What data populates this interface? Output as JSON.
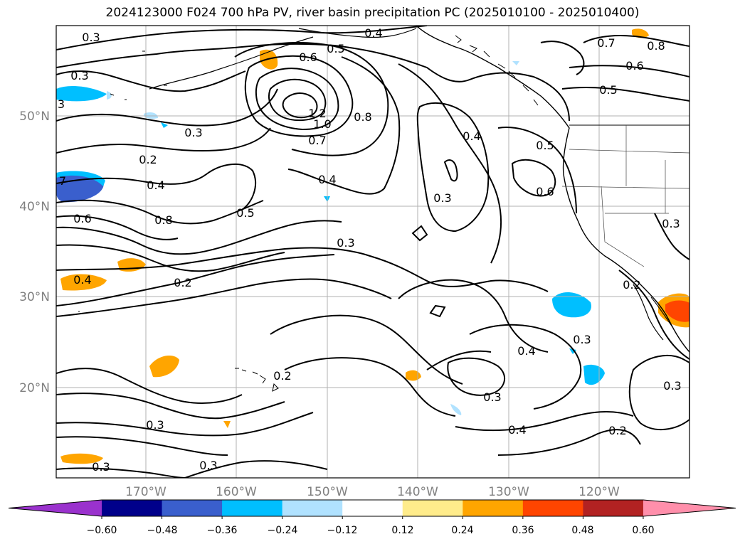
{
  "title": "2024123000 F024 700 hPa PV, river basin precipitation PC (2025010100 - 2025010400)",
  "lat_labels": [
    "50°N",
    "40°N",
    "30°N",
    "20°N"
  ],
  "lon_labels": [
    "170°W",
    "160°W",
    "150°W",
    "140°W",
    "130°W",
    "120°W"
  ],
  "colorbar": {
    "tick_labels": [
      "−0.60",
      "−0.48",
      "−0.36",
      "−0.24",
      "−0.12",
      "0.12",
      "0.24",
      "0.36",
      "0.48",
      "0.60"
    ],
    "colors": [
      "#9a32cd",
      "#00008b",
      "#3a5fcd",
      "#00bfff",
      "#b0e2ff",
      "#ffffff",
      "#ffec8b",
      "#ffa500",
      "#ff4500",
      "#b22222",
      "#ff8fab"
    ]
  },
  "contour_labels": [
    {
      "text": "0.3"
    },
    {
      "text": "0.4"
    },
    {
      "text": "0.6"
    },
    {
      "text": "0.5"
    },
    {
      "text": "0.7"
    },
    {
      "text": "0.8"
    },
    {
      "text": "0.6"
    },
    {
      "text": "0.5"
    },
    {
      "text": "0.3"
    },
    {
      "text": "3"
    },
    {
      "text": "0.3"
    },
    {
      "text": "1.2"
    },
    {
      "text": "1.0"
    },
    {
      "text": "0.7"
    },
    {
      "text": "0.8"
    },
    {
      "text": "0.4"
    },
    {
      "text": "0.5"
    },
    {
      "text": "0.2"
    },
    {
      "text": "0.4"
    },
    {
      "text": "0.4"
    },
    {
      "text": "0.3"
    },
    {
      "text": "0.6"
    },
    {
      "text": "7"
    },
    {
      "text": "0.6"
    },
    {
      "text": "0.8"
    },
    {
      "text": "0.5"
    },
    {
      "text": "0.3"
    },
    {
      "text": "0.3"
    },
    {
      "text": "0.4"
    },
    {
      "text": "0.2"
    },
    {
      "text": "0.2"
    },
    {
      "text": "0.4"
    },
    {
      "text": "0.3"
    },
    {
      "text": "0.2"
    },
    {
      "text": "0.3"
    },
    {
      "text": "0.3"
    },
    {
      "text": "0.4"
    },
    {
      "text": "0.2"
    },
    {
      "text": "0.3"
    },
    {
      "text": "0.3"
    },
    {
      "text": "0.3"
    }
  ]
}
